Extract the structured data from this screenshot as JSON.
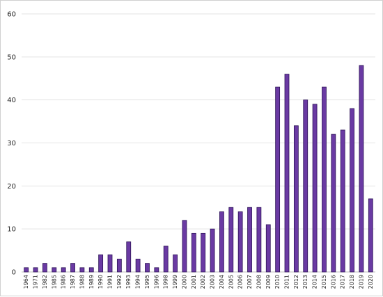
{
  "chart_data": {
    "type": "bar",
    "title": "",
    "xlabel": "",
    "ylabel": "",
    "ylim": [
      0,
      60
    ],
    "yticks": [
      "0",
      "10",
      "20",
      "30",
      "40",
      "50",
      "60"
    ],
    "grid": true,
    "legend": "none",
    "bar_color": "#6a3aa3",
    "bar_edge_color": "#2d1457",
    "categories": [
      "1964",
      "1971",
      "1982",
      "1985",
      "1986",
      "1987",
      "1988",
      "1989",
      "1990",
      "1991",
      "1992",
      "1993",
      "1994",
      "1995",
      "1996",
      "1998",
      "1999",
      "2000",
      "2001",
      "2002",
      "2003",
      "2004",
      "2005",
      "2006",
      "2007",
      "2008",
      "2009",
      "2010",
      "2011",
      "2012",
      "2013",
      "2014",
      "2015",
      "2016",
      "2017",
      "2018",
      "2019",
      "2020"
    ],
    "values": [
      1,
      1,
      2,
      1,
      1,
      2,
      1,
      1,
      4,
      4,
      3,
      7,
      3,
      2,
      1,
      6,
      4,
      12,
      9,
      9,
      10,
      14,
      15,
      14,
      15,
      15,
      11,
      43,
      46,
      34,
      40,
      39,
      43,
      32,
      33,
      38,
      48,
      17
    ]
  }
}
